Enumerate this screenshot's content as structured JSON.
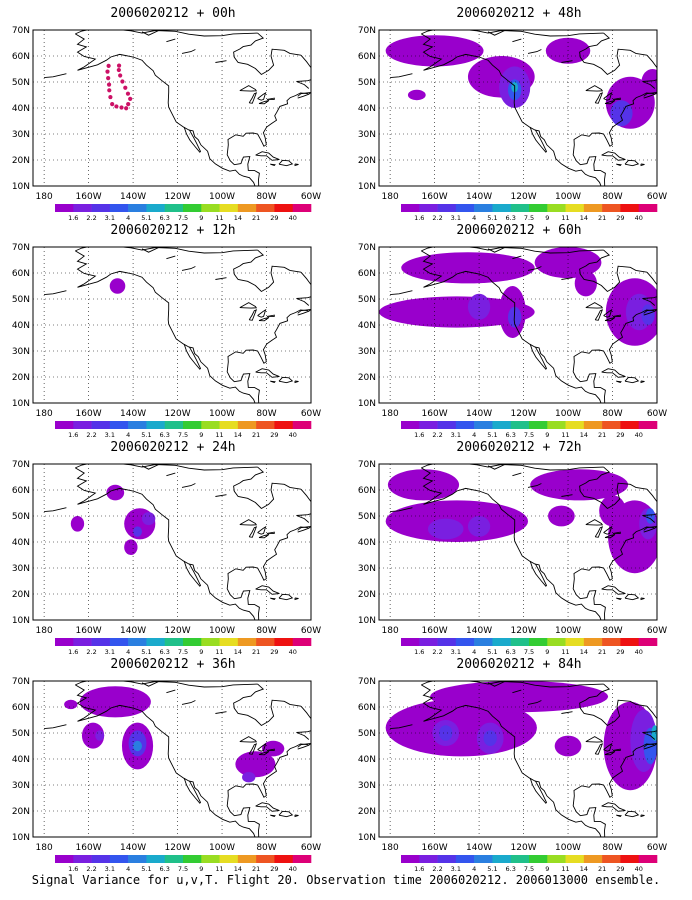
{
  "figure": {
    "caption": "Signal Variance for u,v,T. Flight 20. Observation time 2006020212. 2006013000 ensemble."
  },
  "map_axes": {
    "lon_labels": [
      "180",
      "160W",
      "140W",
      "120W",
      "100W",
      "80W",
      "60W"
    ],
    "lat_labels": [
      "10N",
      "20N",
      "30N",
      "40N",
      "50N",
      "60N",
      "70N"
    ],
    "lon_range_deg_east": [
      -185,
      -60
    ],
    "lat_range_deg_north": [
      10,
      70
    ],
    "gridlines": true
  },
  "colorbar": {
    "labels": [
      "1.6",
      "2.2",
      "3.1",
      "4",
      "5.1",
      "6.3",
      "7.5",
      "9",
      "11",
      "14",
      "21",
      "29",
      "40"
    ],
    "colors": [
      "#9900cc",
      "#7a1fe0",
      "#5533e8",
      "#3355ee",
      "#2a7fe0",
      "#1aaacc",
      "#20c08a",
      "#33cc33",
      "#99dd22",
      "#e6dd22",
      "#ee9922",
      "#ee5522",
      "#ee1111",
      "#dd0077"
    ]
  },
  "panels": [
    {
      "title": "2006020212 + 00h",
      "lead_hours": 0,
      "flight_track": true,
      "blobs": []
    },
    {
      "title": "2006020212 + 12h",
      "lead_hours": 12,
      "flight_track": false,
      "blobs": [
        {
          "lon": -147,
          "lat": 55,
          "rlon": 3.5,
          "rlat": 3,
          "level": 0
        }
      ]
    },
    {
      "title": "2006020212 + 24h",
      "lead_hours": 24,
      "flight_track": false,
      "blobs": [
        {
          "lon": -165,
          "lat": 47,
          "rlon": 3,
          "rlat": 3,
          "level": 0
        },
        {
          "lon": -148,
          "lat": 59,
          "rlon": 4,
          "rlat": 3,
          "level": 0
        },
        {
          "lon": -137,
          "lat": 47,
          "rlon": 7,
          "rlat": 6,
          "level": 0
        },
        {
          "lon": -133,
          "lat": 49,
          "rlon": 3,
          "rlat": 2.5,
          "level": 1
        },
        {
          "lon": -141,
          "lat": 38,
          "rlon": 3,
          "rlat": 3,
          "level": 0
        },
        {
          "lon": -138,
          "lat": 44,
          "rlon": 2,
          "rlat": 2,
          "level": 2
        }
      ]
    },
    {
      "title": "2006020212 + 36h",
      "lead_hours": 36,
      "flight_track": false,
      "blobs": [
        {
          "lon": -168,
          "lat": 61,
          "rlon": 3,
          "rlat": 1.8,
          "level": 0
        },
        {
          "lon": -148,
          "lat": 62,
          "rlon": 16,
          "rlat": 6,
          "level": 0
        },
        {
          "lon": -158,
          "lat": 49,
          "rlon": 5,
          "rlat": 5,
          "level": 0
        },
        {
          "lon": -155,
          "lat": 49,
          "rlon": 2,
          "rlat": 2,
          "level": 1
        },
        {
          "lon": -138,
          "lat": 45,
          "rlon": 7,
          "rlat": 9,
          "level": 0
        },
        {
          "lon": -138,
          "lat": 46,
          "rlon": 4,
          "rlat": 5,
          "level": 2
        },
        {
          "lon": -138,
          "lat": 45,
          "rlon": 2,
          "rlat": 2,
          "level": 4
        },
        {
          "lon": -85,
          "lat": 38,
          "rlon": 9,
          "rlat": 5,
          "level": 0
        },
        {
          "lon": -77,
          "lat": 44,
          "rlon": 5,
          "rlat": 3,
          "level": 0
        },
        {
          "lon": -88,
          "lat": 33,
          "rlon": 3,
          "rlat": 2,
          "level": 1
        }
      ]
    },
    {
      "title": "2006020212 + 48h",
      "lead_hours": 48,
      "flight_track": false,
      "blobs": [
        {
          "lon": -160,
          "lat": 62,
          "rlon": 22,
          "rlat": 6,
          "level": 0
        },
        {
          "lon": -168,
          "lat": 45,
          "rlon": 4,
          "rlat": 2,
          "level": 0
        },
        {
          "lon": -130,
          "lat": 52,
          "rlon": 15,
          "rlat": 8,
          "level": 0
        },
        {
          "lon": -124,
          "lat": 48,
          "rlon": 7,
          "rlat": 8,
          "level": 1
        },
        {
          "lon": -124,
          "lat": 47,
          "rlon": 3,
          "rlat": 4,
          "level": 3
        },
        {
          "lon": -124,
          "lat": 48,
          "rlon": 1.5,
          "rlat": 2,
          "level": 5
        },
        {
          "lon": -100,
          "lat": 62,
          "rlon": 10,
          "rlat": 5,
          "level": 0
        },
        {
          "lon": -72,
          "lat": 42,
          "rlon": 11,
          "rlat": 10,
          "level": 0
        },
        {
          "lon": -76,
          "lat": 38,
          "rlon": 5,
          "rlat": 5,
          "level": 2
        },
        {
          "lon": -62,
          "lat": 50,
          "rlon": 5,
          "rlat": 5,
          "level": 0
        }
      ]
    },
    {
      "title": "2006020212 + 60h",
      "lead_hours": 60,
      "flight_track": false,
      "blobs": [
        {
          "lon": -150,
          "lat": 45,
          "rlon": 35,
          "rlat": 6,
          "level": 0
        },
        {
          "lon": -145,
          "lat": 62,
          "rlon": 30,
          "rlat": 6,
          "level": 0
        },
        {
          "lon": -140,
          "lat": 47,
          "rlon": 5,
          "rlat": 5,
          "level": 1
        },
        {
          "lon": -125,
          "lat": 45,
          "rlon": 6,
          "rlat": 10,
          "level": 0
        },
        {
          "lon": -124,
          "lat": 43,
          "rlon": 3,
          "rlat": 4,
          "level": 2
        },
        {
          "lon": -100,
          "lat": 64,
          "rlon": 15,
          "rlat": 6,
          "level": 0
        },
        {
          "lon": -92,
          "lat": 56,
          "rlon": 5,
          "rlat": 5,
          "level": 0
        },
        {
          "lon": -70,
          "lat": 45,
          "rlon": 13,
          "rlat": 13,
          "level": 0
        },
        {
          "lon": -68,
          "lat": 45,
          "rlon": 6,
          "rlat": 7,
          "level": 1
        },
        {
          "lon": -64,
          "lat": 44,
          "rlon": 3,
          "rlat": 4,
          "level": 2
        }
      ]
    },
    {
      "title": "2006020212 + 72h",
      "lead_hours": 72,
      "flight_track": false,
      "blobs": [
        {
          "lon": -150,
          "lat": 48,
          "rlon": 32,
          "rlat": 8,
          "level": 0
        },
        {
          "lon": -165,
          "lat": 62,
          "rlon": 16,
          "rlat": 6,
          "level": 0
        },
        {
          "lon": -155,
          "lat": 45,
          "rlon": 8,
          "rlat": 4,
          "level": 1
        },
        {
          "lon": -140,
          "lat": 46,
          "rlon": 5,
          "rlat": 4,
          "level": 1
        },
        {
          "lon": -95,
          "lat": 62,
          "rlon": 22,
          "rlat": 6,
          "level": 0
        },
        {
          "lon": -103,
          "lat": 50,
          "rlon": 6,
          "rlat": 4,
          "level": 0
        },
        {
          "lon": -80,
          "lat": 52,
          "rlon": 6,
          "rlat": 6,
          "level": 0
        },
        {
          "lon": -70,
          "lat": 42,
          "rlon": 12,
          "rlat": 14,
          "level": 0
        },
        {
          "lon": -64,
          "lat": 47,
          "rlon": 4,
          "rlat": 6,
          "level": 1
        },
        {
          "lon": -63,
          "lat": 50,
          "rlon": 2,
          "rlat": 3,
          "level": 3
        }
      ]
    },
    {
      "title": "2006020212 + 84h",
      "lead_hours": 84,
      "flight_track": false,
      "blobs": [
        {
          "lon": -148,
          "lat": 52,
          "rlon": 34,
          "rlat": 11,
          "level": 0
        },
        {
          "lon": -122,
          "lat": 64,
          "rlon": 40,
          "rlat": 6,
          "level": 0
        },
        {
          "lon": -155,
          "lat": 50,
          "rlon": 6,
          "rlat": 5,
          "level": 1
        },
        {
          "lon": -135,
          "lat": 48,
          "rlon": 6,
          "rlat": 6,
          "level": 1
        },
        {
          "lon": -155,
          "lat": 50,
          "rlon": 3,
          "rlat": 3,
          "level": 2
        },
        {
          "lon": -135,
          "lat": 48,
          "rlon": 3,
          "rlat": 3,
          "level": 2
        },
        {
          "lon": -100,
          "lat": 45,
          "rlon": 6,
          "rlat": 4,
          "level": 0
        },
        {
          "lon": -72,
          "lat": 45,
          "rlon": 12,
          "rlat": 17,
          "level": 0
        },
        {
          "lon": -66,
          "lat": 47,
          "rlon": 6,
          "rlat": 12,
          "level": 1
        },
        {
          "lon": -63,
          "lat": 45,
          "rlon": 3,
          "rlat": 7,
          "level": 3
        },
        {
          "lon": -61,
          "lat": 50,
          "rlon": 1.5,
          "rlat": 3,
          "level": 5
        }
      ]
    }
  ]
}
